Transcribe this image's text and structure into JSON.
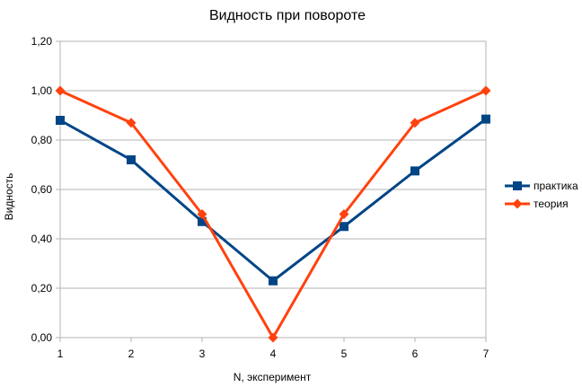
{
  "chart_data": {
    "type": "line",
    "title": "Видность при повороте",
    "xlabel": "N, эксперимент",
    "ylabel": "Видность",
    "x": [
      1,
      2,
      3,
      4,
      5,
      6,
      7
    ],
    "xtick_labels": [
      "1",
      "2",
      "3",
      "4",
      "5",
      "6",
      "7"
    ],
    "ylim": [
      0,
      1.2
    ],
    "ytick_labels": [
      "0,00",
      "0,20",
      "0,40",
      "0,60",
      "0,80",
      "1,00",
      "1,20"
    ],
    "grid": true,
    "legend_position": "right",
    "series": [
      {
        "name": "практика",
        "values": [
          0.88,
          0.72,
          0.47,
          0.23,
          0.45,
          0.675,
          0.885
        ],
        "color": "#004586",
        "marker": "square"
      },
      {
        "name": "теория",
        "values": [
          1.0,
          0.87,
          0.5,
          0.0,
          0.5,
          0.87,
          1.0
        ],
        "color": "#ff420e",
        "marker": "diamond"
      }
    ]
  }
}
